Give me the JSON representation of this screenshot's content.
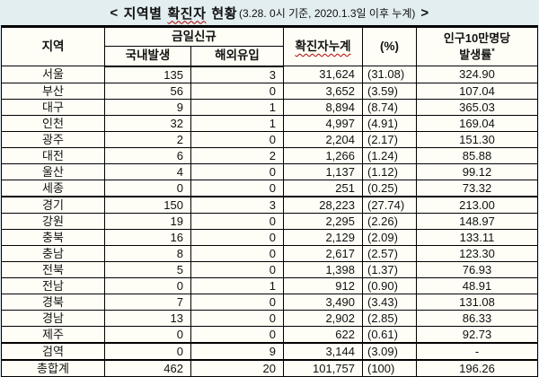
{
  "title": {
    "open": "<",
    "word1": "지역별",
    "word2_wavy": "확진자",
    "word3": "현황",
    "paren": "(3.28. 0시 기준, 2020.1.3일 이후 누계)",
    "close": ">"
  },
  "colors": {
    "title_band_bg": "#e3eef0",
    "table_bg": "#fffef6",
    "border": "#000000",
    "spellcheck_underline": "#b00000"
  },
  "table": {
    "header": {
      "region": "지역",
      "today_new": "금일신규",
      "domestic": "국내발생",
      "overseas": "해외유입",
      "cumulative": "확진자누계",
      "percent": "(%)",
      "per100k_line1": "인구10만명당",
      "per100k_line2": "발생률",
      "per100k_note_mark": "*"
    },
    "rows": [
      {
        "region": "서울",
        "domestic": "135",
        "overseas": "3",
        "cumulative": "31,624",
        "percent": "(31.08)",
        "rate": "324.90"
      },
      {
        "region": "부산",
        "domestic": "56",
        "overseas": "0",
        "cumulative": "3,652",
        "percent": "(3.59)",
        "rate": "107.04"
      },
      {
        "region": "대구",
        "domestic": "9",
        "overseas": "1",
        "cumulative": "8,894",
        "percent": "(8.74)",
        "rate": "365.03"
      },
      {
        "region": "인천",
        "domestic": "32",
        "overseas": "1",
        "cumulative": "4,997",
        "percent": "(4.91)",
        "rate": "169.04"
      },
      {
        "region": "광주",
        "domestic": "2",
        "overseas": "0",
        "cumulative": "2,204",
        "percent": "(2.17)",
        "rate": "151.30"
      },
      {
        "region": "대전",
        "domestic": "6",
        "overseas": "2",
        "cumulative": "1,266",
        "percent": "(1.24)",
        "rate": "85.88"
      },
      {
        "region": "울산",
        "domestic": "4",
        "overseas": "0",
        "cumulative": "1,137",
        "percent": "(1.12)",
        "rate": "99.12"
      },
      {
        "region": "세종",
        "domestic": "0",
        "overseas": "0",
        "cumulative": "251",
        "percent": "(0.25)",
        "rate": "73.32"
      },
      {
        "region": "경기",
        "domestic": "150",
        "overseas": "3",
        "cumulative": "28,223",
        "percent": "(27.74)",
        "rate": "213.00",
        "thick_top": true
      },
      {
        "region": "강원",
        "domestic": "19",
        "overseas": "0",
        "cumulative": "2,295",
        "percent": "(2.26)",
        "rate": "148.97"
      },
      {
        "region": "충북",
        "domestic": "16",
        "overseas": "0",
        "cumulative": "2,129",
        "percent": "(2.09)",
        "rate": "133.11"
      },
      {
        "region": "충남",
        "domestic": "8",
        "overseas": "0",
        "cumulative": "2,617",
        "percent": "(2.57)",
        "rate": "123.30"
      },
      {
        "region": "전북",
        "domestic": "5",
        "overseas": "0",
        "cumulative": "1,398",
        "percent": "(1.37)",
        "rate": "76.93"
      },
      {
        "region": "전남",
        "domestic": "0",
        "overseas": "1",
        "cumulative": "912",
        "percent": "(0.90)",
        "rate": "48.91"
      },
      {
        "region": "경북",
        "domestic": "7",
        "overseas": "0",
        "cumulative": "3,490",
        "percent": "(3.43)",
        "rate": "131.08"
      },
      {
        "region": "경남",
        "domestic": "13",
        "overseas": "0",
        "cumulative": "2,902",
        "percent": "(2.85)",
        "rate": "86.33"
      },
      {
        "region": "제주",
        "domestic": "0",
        "overseas": "0",
        "cumulative": "622",
        "percent": "(0.61)",
        "rate": "92.73"
      },
      {
        "region": "검역",
        "domestic": "0",
        "overseas": "9",
        "cumulative": "3,144",
        "percent": "(3.09)",
        "rate": "-",
        "thick_top": true
      },
      {
        "region": "총합계",
        "domestic": "462",
        "overseas": "20",
        "cumulative": "101,757",
        "percent": "(100)",
        "rate": "196.26",
        "thick_top": true,
        "is_total": true
      }
    ]
  }
}
